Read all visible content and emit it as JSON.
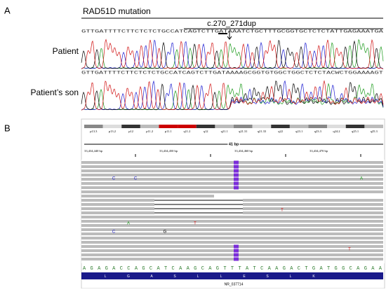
{
  "panel_a": {
    "label": "A",
    "title": "RAD51D mutation",
    "variant": "c.270_271dup",
    "tracks": [
      {
        "name": "Patient",
        "sequence": "GTTGATTTTCTTCTCTCTGCCATCAGTCTTGATAAATCTGCTTTGCGGTGCTCTCTATTGAGAAATGA"
      },
      {
        "name": "Patient’s son",
        "sequence": "GTTGATTTTCTTCTCTCTGCCATCAGTCTTGATAAAAGCGGTGTGGCTGGCTCTCTACWCTGGAAAAGT"
      }
    ]
  },
  "panel_b": {
    "label": "B",
    "bands": [
      "p13.3",
      "p13.2",
      "p12",
      "p11.2",
      "p11.1",
      "q11.2",
      "q12",
      "q21.1",
      "q21.31",
      "q21.33",
      "q22",
      "q23.1",
      "q23.3",
      "q24.2",
      "q25.1",
      "q25.3"
    ],
    "span": "41 bp",
    "coordinates": [
      "33,434,440 bp",
      "33,434,450 bp",
      "33,434,460 bp",
      "33,434,470 bp"
    ],
    "mismatches": [
      "C",
      "C",
      "A",
      "A",
      "T",
      "T",
      "C",
      "G",
      "T"
    ],
    "insertion": "I",
    "reference": "AGAGACCAGCATCAAGCAGTTTATCAAGACTGATGGCAGAA",
    "amino_acids": [
      "L",
      "G",
      "A",
      "S",
      "L",
      "L",
      "E",
      "S",
      "L",
      "K"
    ],
    "gene": "NR_037714"
  }
}
